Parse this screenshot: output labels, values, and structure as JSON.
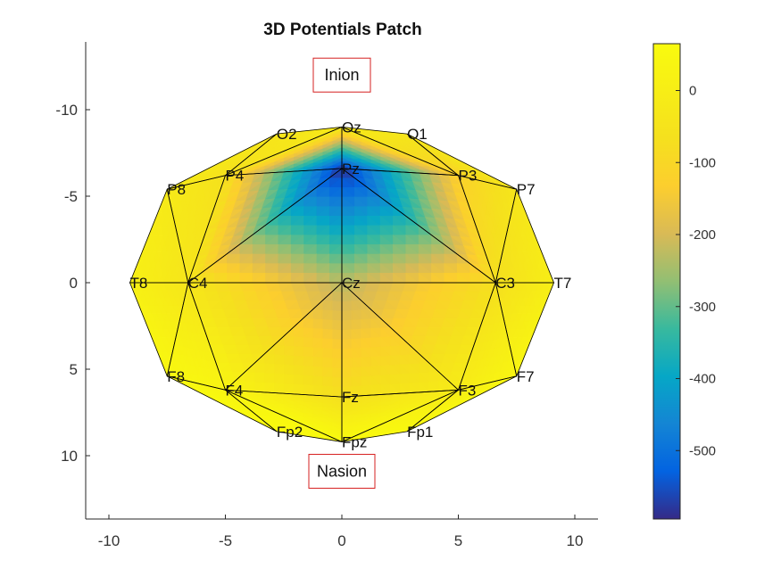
{
  "chart_data": {
    "type": "heatmap",
    "title": "3D Potentials Patch",
    "xlabel": "",
    "ylabel": "",
    "xlim": [
      -11,
      11
    ],
    "ylim": [
      -14,
      14
    ],
    "y_reversed": true,
    "xticks": [
      -10,
      -5,
      0,
      5,
      10
    ],
    "yticks": [
      -10,
      -5,
      0,
      5,
      10
    ],
    "landmarks": [
      {
        "label": "Inion",
        "x": 0,
        "y": -12
      },
      {
        "label": "Nasion",
        "x": 0,
        "y": 10.9
      }
    ],
    "electrodes": [
      {
        "label": "Oz",
        "x": 0,
        "y": -9,
        "value": -20
      },
      {
        "label": "O1",
        "x": 2.8,
        "y": -8.6,
        "value": -40
      },
      {
        "label": "O2",
        "x": -2.8,
        "y": -8.6,
        "value": -40
      },
      {
        "label": "Pz",
        "x": 0,
        "y": -6.6,
        "value": -590
      },
      {
        "label": "P3",
        "x": 5,
        "y": -6.2,
        "value": -120
      },
      {
        "label": "P4",
        "x": -5,
        "y": -6.2,
        "value": -60
      },
      {
        "label": "P7",
        "x": 7.5,
        "y": -5.4,
        "value": -40
      },
      {
        "label": "P8",
        "x": -7.5,
        "y": -5.4,
        "value": -20
      },
      {
        "label": "Cz",
        "x": 0,
        "y": 0,
        "value": -230
      },
      {
        "label": "C3",
        "x": 6.6,
        "y": 0,
        "value": -70
      },
      {
        "label": "C4",
        "x": -6.6,
        "y": 0,
        "value": -40
      },
      {
        "label": "T7",
        "x": 9.1,
        "y": 0,
        "value": 0
      },
      {
        "label": "T8",
        "x": -9.1,
        "y": 0,
        "value": 10
      },
      {
        "label": "Fz",
        "x": 0,
        "y": 6.6,
        "value": -70
      },
      {
        "label": "F3",
        "x": 5,
        "y": 6.2,
        "value": -10
      },
      {
        "label": "F4",
        "x": -5,
        "y": 6.2,
        "value": 30
      },
      {
        "label": "F7",
        "x": 7.5,
        "y": 5.4,
        "value": 40
      },
      {
        "label": "F8",
        "x": -7.5,
        "y": 5.4,
        "value": 50
      },
      {
        "label": "Fpz",
        "x": 0,
        "y": 9.2,
        "value": 60
      },
      {
        "label": "Fp1",
        "x": 2.8,
        "y": 8.6,
        "value": 50
      },
      {
        "label": "Fp2",
        "x": -2.8,
        "y": 8.6,
        "value": 60
      }
    ],
    "triangles": [
      [
        "Oz",
        "O1",
        "P3"
      ],
      [
        "Oz",
        "P3",
        "Pz"
      ],
      [
        "Oz",
        "O2",
        "P4"
      ],
      [
        "Oz",
        "P4",
        "Pz"
      ],
      [
        "O1",
        "P7",
        "P3"
      ],
      [
        "O2",
        "P8",
        "P4"
      ],
      [
        "Pz",
        "P3",
        "C3"
      ],
      [
        "Pz",
        "C3",
        "Cz"
      ],
      [
        "Pz",
        "P4",
        "C4"
      ],
      [
        "Pz",
        "C4",
        "Cz"
      ],
      [
        "P3",
        "P7",
        "C3"
      ],
      [
        "P4",
        "P8",
        "C4"
      ],
      [
        "P7",
        "T7",
        "C3"
      ],
      [
        "P8",
        "T8",
        "C4"
      ],
      [
        "T7",
        "F7",
        "C3"
      ],
      [
        "T8",
        "F8",
        "C4"
      ],
      [
        "C3",
        "F7",
        "F3"
      ],
      [
        "C4",
        "F8",
        "F4"
      ],
      [
        "Cz",
        "C3",
        "F3"
      ],
      [
        "Cz",
        "F3",
        "Fz"
      ],
      [
        "Cz",
        "C4",
        "F4"
      ],
      [
        "Cz",
        "F4",
        "Fz"
      ],
      [
        "Fz",
        "F3",
        "Fpz"
      ],
      [
        "Fz",
        "F4",
        "Fpz"
      ],
      [
        "F3",
        "Fp1",
        "Fpz"
      ],
      [
        "F4",
        "Fp2",
        "Fpz"
      ],
      [
        "F3",
        "F7",
        "Fp1"
      ],
      [
        "F4",
        "F8",
        "Fp2"
      ]
    ],
    "colorbar": {
      "colormap": "parula",
      "clim": [
        -595,
        65
      ],
      "ticks": [
        0,
        -100,
        -200,
        -300,
        -400,
        -500
      ]
    },
    "grid": false
  }
}
